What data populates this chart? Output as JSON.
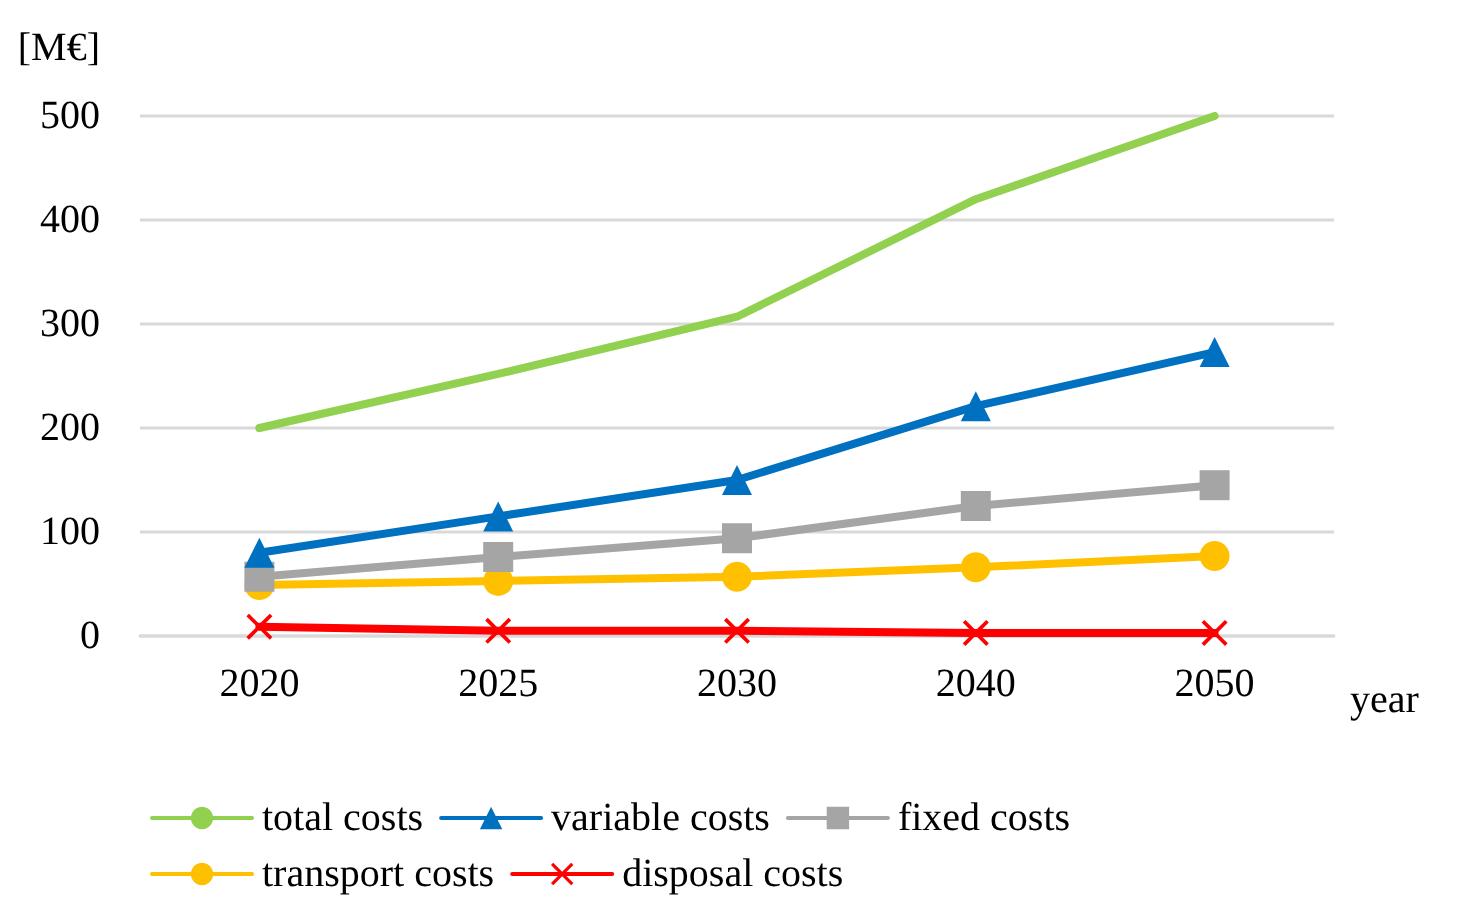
{
  "chart_data": {
    "type": "line",
    "ylabel": "[M€]",
    "xlabel": "year",
    "categories": [
      "2020",
      "2025",
      "2030",
      "2040",
      "2050"
    ],
    "series": [
      {
        "name": "total costs",
        "color": "#92d050",
        "marker": "none",
        "values": [
          200,
          252,
          307,
          420,
          500
        ]
      },
      {
        "name": "variable costs",
        "color": "#0070c0",
        "marker": "triangle",
        "values": [
          80,
          115,
          150,
          221,
          273
        ]
      },
      {
        "name": "fixed costs",
        "color": "#a5a5a5",
        "marker": "square",
        "values": [
          57,
          76,
          94,
          125,
          145
        ]
      },
      {
        "name": "transport costs",
        "color": "#ffc000",
        "marker": "circle",
        "values": [
          49,
          53,
          57,
          66,
          77
        ]
      },
      {
        "name": "disposal costs",
        "color": "#ff0000",
        "marker": "cross",
        "values": [
          9,
          5,
          5,
          3,
          3
        ]
      }
    ],
    "ylim": [
      0,
      500
    ],
    "yticks": [
      0,
      100,
      200,
      300,
      400,
      500
    ],
    "grid": "y",
    "legend": "bottom",
    "line_style": "solid"
  }
}
